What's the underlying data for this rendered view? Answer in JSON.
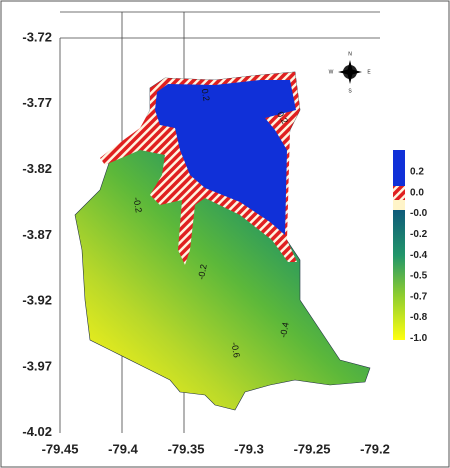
{
  "axes": {
    "y_labels": [
      "-3.72",
      "-3.77",
      "-3.82",
      "-3.87",
      "-3.92",
      "-3.97",
      "-4.02"
    ],
    "x_labels": [
      "-79.45",
      "-79.4",
      "-79.35",
      "-79.3",
      "-79.25",
      "-79.2"
    ]
  },
  "legend": {
    "labels": [
      "0.2",
      "0.0",
      "-0.0",
      "-0.2",
      "-0.4",
      "-0.5",
      "-0.7",
      "-0.8",
      "-1.0"
    ]
  },
  "contour_labels": [
    "0.2",
    "0.2",
    "-0.2",
    "-0.2",
    "-0.6",
    "-0.4"
  ],
  "compass": [
    "N",
    "S",
    "W",
    "E"
  ]
}
